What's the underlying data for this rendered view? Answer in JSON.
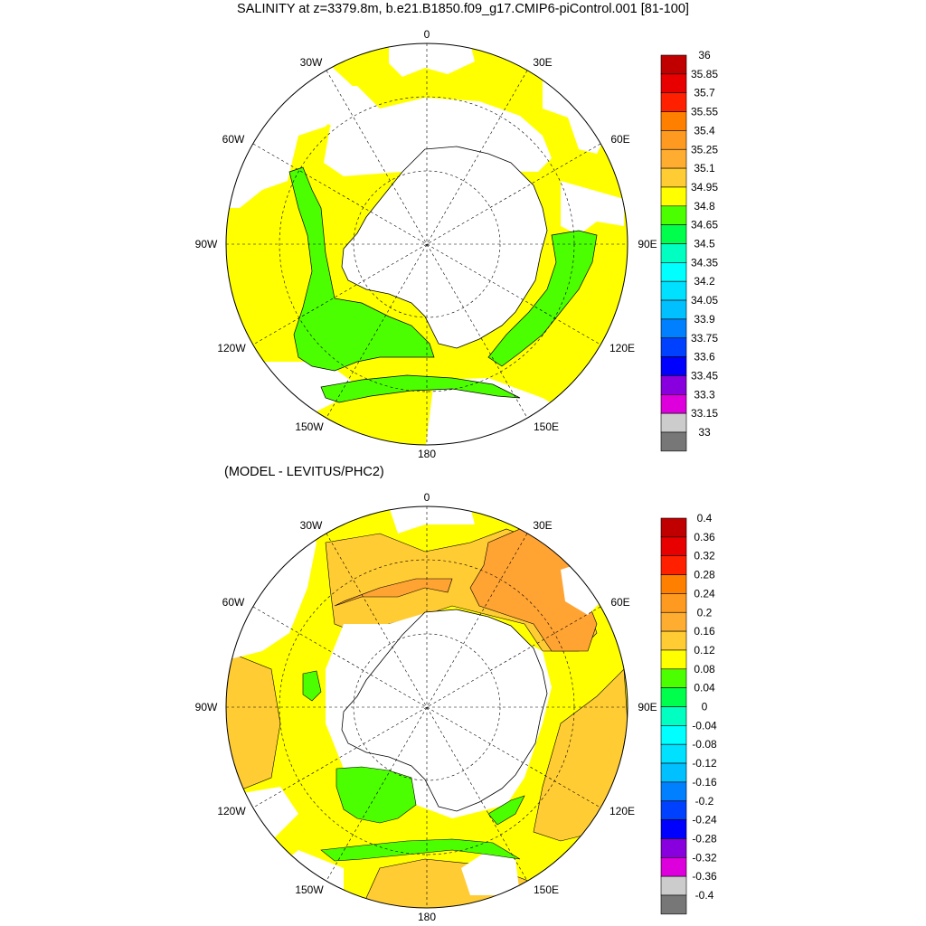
{
  "title": "SALINITY at z=3379.8m, b.e21.B1850.f09_g17.CMIP6-piControl.001 [81-100]",
  "subtitle": "(MODEL - LEVITUS/PHC2)",
  "map_labels": {
    "lon0": "0",
    "lon30e": "30E",
    "lon60e": "60E",
    "lon90e": "90E",
    "lon120e": "120E",
    "lon150e": "150E",
    "lon180": "180",
    "lon150w": "150W",
    "lon120w": "120W",
    "lon90w": "90W",
    "lon60w": "60W",
    "lon30w": "30W"
  },
  "colors": {
    "land": "#ffffff",
    "missing": "#ffffff",
    "yellow": "#ffff00",
    "green": "#4cff00",
    "green2": "#00ff4c",
    "orange_light": "#ffcc33",
    "orange": "#ffa333",
    "gold": "#ffd633"
  },
  "colorbar_top": {
    "labels": [
      "36",
      "35.85",
      "35.7",
      "35.55",
      "35.4",
      "35.25",
      "35.1",
      "34.95",
      "34.8",
      "34.65",
      "34.5",
      "34.35",
      "34.2",
      "34.05",
      "33.9",
      "33.75",
      "33.6",
      "33.45",
      "33.3",
      "33.15",
      "33"
    ],
    "colors": [
      "#c00000",
      "#e80000",
      "#ff2000",
      "#ff8000",
      "#ff9a20",
      "#ffad30",
      "#ffcc33",
      "#ffff00",
      "#4cff00",
      "#00ff4c",
      "#00ffc0",
      "#00ffff",
      "#00e0ff",
      "#00c0ff",
      "#0080ff",
      "#0040ff",
      "#0000ff",
      "#8800dd",
      "#dd00dd",
      "#cccccc"
    ]
  },
  "colorbar_bottom": {
    "labels": [
      "0.4",
      "0.36",
      "0.32",
      "0.28",
      "0.24",
      "0.2",
      "0.16",
      "0.12",
      "0.08",
      "0.04",
      "0",
      "-0.04",
      "-0.08",
      "-0.12",
      "-0.16",
      "-0.2",
      "-0.24",
      "-0.28",
      "-0.32",
      "-0.36",
      "-0.4"
    ],
    "colors": [
      "#c00000",
      "#e80000",
      "#ff2000",
      "#ff8000",
      "#ff9a20",
      "#ffad30",
      "#ffcc33",
      "#ffff00",
      "#4cff00",
      "#00ff4c",
      "#00ffc0",
      "#00ffff",
      "#00e0ff",
      "#00c0ff",
      "#0080ff",
      "#0040ff",
      "#0000ff",
      "#8800dd",
      "#dd00dd",
      "#cccccc"
    ]
  }
}
